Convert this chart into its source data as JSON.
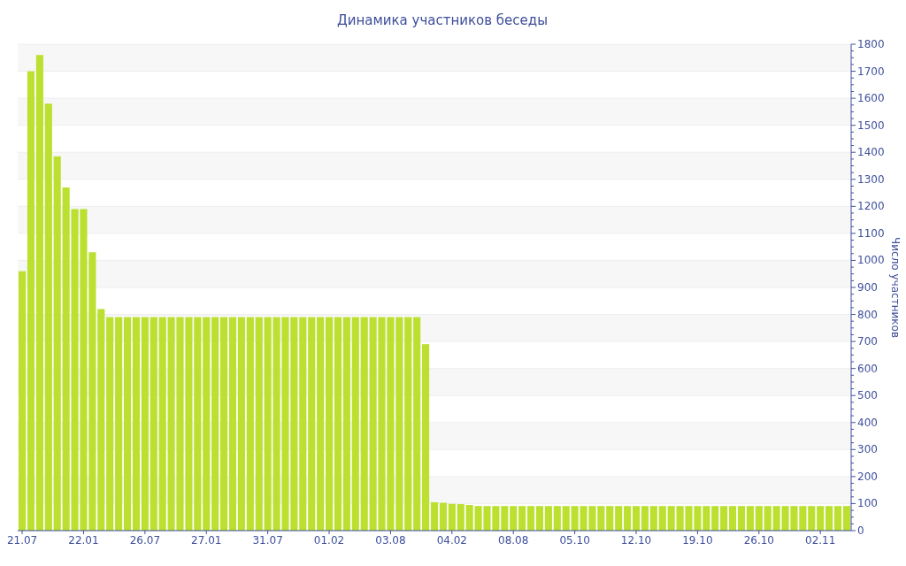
{
  "chart_data": {
    "type": "bar",
    "title": "Динамика участников беседы",
    "ylabel": "Число участников",
    "categories": [
      "21.07",
      null,
      null,
      null,
      null,
      null,
      null,
      "22.01",
      null,
      null,
      null,
      null,
      null,
      null,
      "26.07",
      null,
      null,
      null,
      null,
      null,
      null,
      "27.01",
      null,
      null,
      null,
      null,
      null,
      null,
      "31.07",
      null,
      null,
      null,
      null,
      null,
      null,
      "01.02",
      null,
      null,
      null,
      null,
      null,
      null,
      "03.08",
      null,
      null,
      null,
      null,
      null,
      null,
      "04.02",
      null,
      null,
      null,
      null,
      null,
      null,
      "08.08",
      null,
      null,
      null,
      null,
      null,
      null,
      "05.10",
      null,
      null,
      null,
      null,
      null,
      null,
      "12.10",
      null,
      null,
      null,
      null,
      null,
      null,
      "19.10",
      null,
      null,
      null,
      null,
      null,
      null,
      "26.10",
      null,
      null,
      null,
      null,
      null,
      null,
      "02.11",
      null,
      null,
      null
    ],
    "values": [
      960,
      1700,
      1760,
      1580,
      1385,
      1270,
      1190,
      1190,
      1030,
      820,
      790,
      790,
      790,
      790,
      790,
      790,
      790,
      790,
      790,
      790,
      790,
      790,
      790,
      790,
      790,
      790,
      790,
      790,
      790,
      790,
      790,
      790,
      790,
      790,
      790,
      790,
      790,
      790,
      790,
      790,
      790,
      790,
      790,
      790,
      790,
      790,
      690,
      105,
      103,
      99,
      98,
      95,
      91,
      91,
      91,
      91,
      91,
      91,
      91,
      91,
      91,
      91,
      91,
      91,
      91,
      91,
      91,
      91,
      91,
      91,
      91,
      91,
      91,
      91,
      91,
      91,
      91,
      91,
      91,
      91,
      91,
      91,
      91,
      91,
      91,
      91,
      91,
      91,
      91,
      91,
      91,
      91,
      91,
      91,
      91
    ],
    "color": "#bbe02f",
    "ylim": [
      0,
      1800
    ],
    "yticks": [
      0,
      100,
      200,
      300,
      400,
      500,
      600,
      700,
      800,
      900,
      1000,
      1100,
      1200,
      1300,
      1400,
      1500,
      1600,
      1700,
      1800
    ],
    "grid": "y"
  }
}
